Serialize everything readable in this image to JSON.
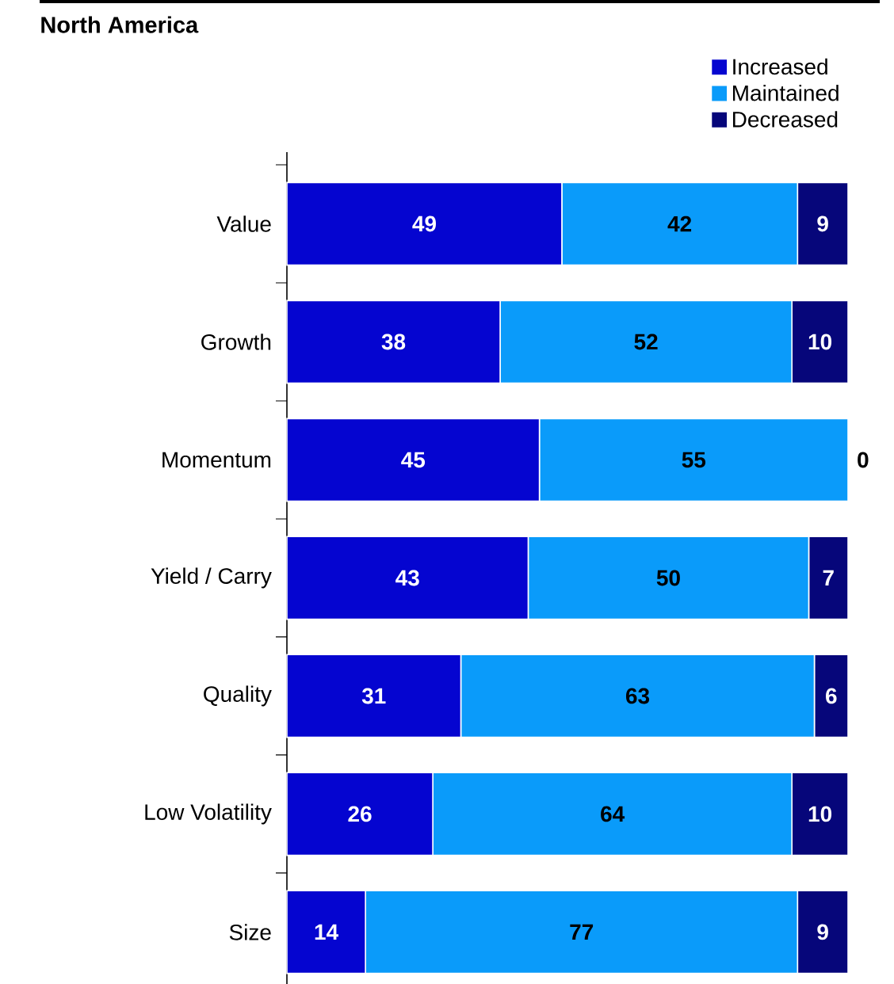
{
  "chart_data": {
    "type": "bar",
    "orientation": "horizontal",
    "stacked": true,
    "title": "North America",
    "categories": [
      "Value",
      "Growth",
      "Momentum",
      "Yield / Carry",
      "Quality",
      "Low Volatility",
      "Size"
    ],
    "series": [
      {
        "name": "Increased",
        "color": "#0505d0",
        "values": [
          49,
          38,
          45,
          43,
          31,
          26,
          14
        ]
      },
      {
        "name": "Maintained",
        "color": "#0a9bfa",
        "values": [
          42,
          52,
          55,
          50,
          63,
          64,
          77
        ]
      },
      {
        "name": "Decreased",
        "color": "#06067a",
        "values": [
          9,
          10,
          0,
          7,
          6,
          10,
          9
        ]
      }
    ],
    "data_labels": true,
    "legend": "top right"
  }
}
